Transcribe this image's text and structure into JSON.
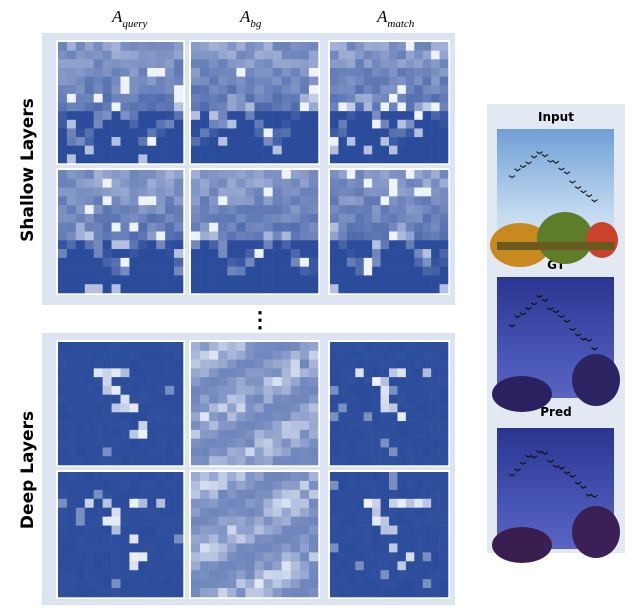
{
  "columns": [
    {
      "symbol": "A",
      "subscript": "query"
    },
    {
      "symbol": "A",
      "subscript": "bg"
    },
    {
      "symbol": "A",
      "subscript": "match"
    }
  ],
  "rows": [
    "Shallow Layers",
    "Deep Layers"
  ],
  "ellipsis": "⋮",
  "panel": {
    "labels": [
      "Input",
      "GT",
      "Pred"
    ]
  }
}
